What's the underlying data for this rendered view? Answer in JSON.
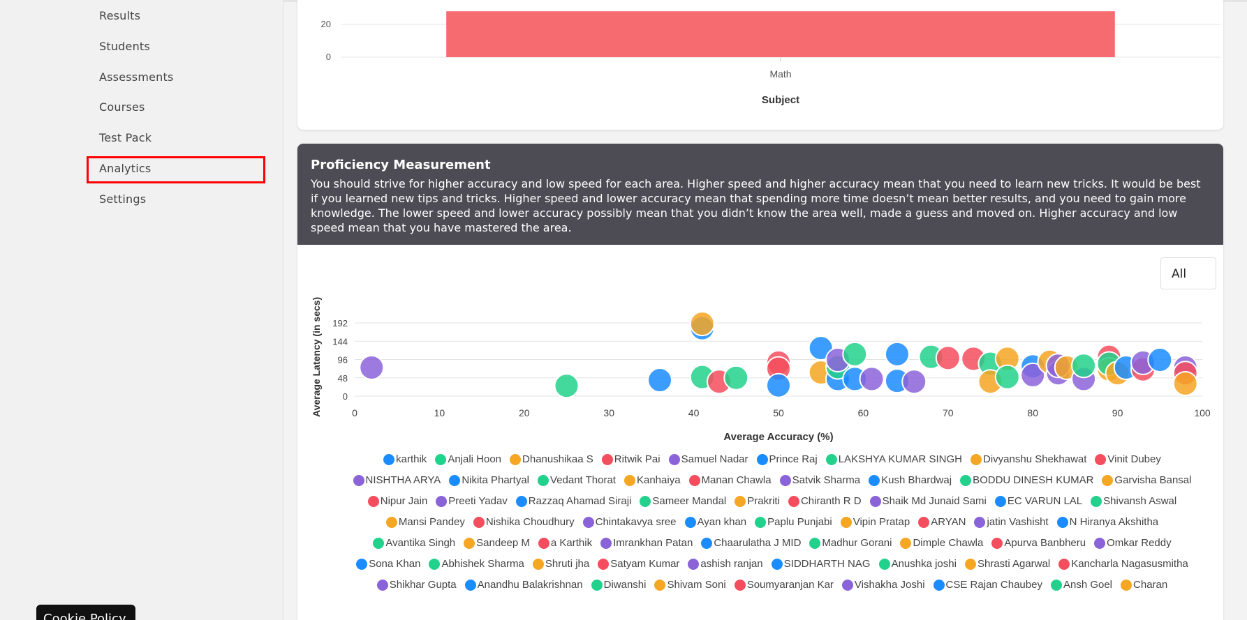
{
  "sidebar": {
    "items": [
      {
        "label": "Results"
      },
      {
        "label": "Students"
      },
      {
        "label": "Assessments"
      },
      {
        "label": "Courses"
      },
      {
        "label": "Test Pack"
      },
      {
        "label": "Analytics"
      },
      {
        "label": "Settings"
      }
    ],
    "active": "Analytics",
    "cookie_button": "Cookie Policy"
  },
  "subject_chart": {
    "chart_data": {
      "type": "bar",
      "categories": [
        "Math"
      ],
      "values": [
        28
      ],
      "xlabel": "Subject",
      "ylim": [
        0,
        28
      ],
      "y_ticks": [
        0,
        20
      ],
      "color": "#f56b6f"
    }
  },
  "proficiency": {
    "title": "Proficiency Measurement",
    "description": "You should strive for higher accuracy and low speed for each area. Higher speed and higher accuracy mean that you need to learn new tricks. It would be best if you learned new tips and tricks. Higher speed and lower accuracy mean that spending more time doesn’t mean better results, and you need to gain more knowledge. The lower speed and lower accuracy possibly mean that you didn’t know the area well, made a guess and moved on. Higher accuracy and low speed mean that you have mastered the area.",
    "filter_value": "All",
    "chart_data": {
      "type": "scatter",
      "xlabel": "Average Accuracy (%)",
      "ylabel": "Average Latency (in secs)",
      "xlim": [
        0,
        100
      ],
      "ylim": [
        0,
        200
      ],
      "x_ticks": [
        0,
        10,
        20,
        30,
        40,
        50,
        60,
        70,
        80,
        90,
        100
      ],
      "y_ticks": [
        0,
        48,
        96,
        144,
        192
      ],
      "points": [
        {
          "x": 2,
          "y": 75,
          "color": "#8b63d9"
        },
        {
          "x": 25,
          "y": 27,
          "color": "#22d18b"
        },
        {
          "x": 36,
          "y": 42,
          "color": "#1a8cff"
        },
        {
          "x": 41,
          "y": 178,
          "color": "#1a8cff"
        },
        {
          "x": 41,
          "y": 190,
          "color": "#f5a623"
        },
        {
          "x": 41,
          "y": 50,
          "color": "#22d18b"
        },
        {
          "x": 43,
          "y": 38,
          "color": "#f44d5e"
        },
        {
          "x": 45,
          "y": 48,
          "color": "#22d18b"
        },
        {
          "x": 50,
          "y": 88,
          "color": "#f44d5e"
        },
        {
          "x": 50,
          "y": 72,
          "color": "#f44d5e"
        },
        {
          "x": 50,
          "y": 28,
          "color": "#1a8cff"
        },
        {
          "x": 55,
          "y": 126,
          "color": "#1a8cff"
        },
        {
          "x": 55,
          "y": 62,
          "color": "#f5a623"
        },
        {
          "x": 57,
          "y": 45,
          "color": "#1a8cff"
        },
        {
          "x": 57,
          "y": 76,
          "color": "#22d18b"
        },
        {
          "x": 57,
          "y": 95,
          "color": "#8b63d9"
        },
        {
          "x": 59,
          "y": 110,
          "color": "#22d18b"
        },
        {
          "x": 59,
          "y": 45,
          "color": "#1a8cff"
        },
        {
          "x": 61,
          "y": 45,
          "color": "#8b63d9"
        },
        {
          "x": 64,
          "y": 110,
          "color": "#1a8cff"
        },
        {
          "x": 64,
          "y": 40,
          "color": "#1a8cff"
        },
        {
          "x": 66,
          "y": 38,
          "color": "#8b63d9"
        },
        {
          "x": 68,
          "y": 103,
          "color": "#22d18b"
        },
        {
          "x": 70,
          "y": 100,
          "color": "#f44d5e"
        },
        {
          "x": 73,
          "y": 98,
          "color": "#f44d5e"
        },
        {
          "x": 75,
          "y": 85,
          "color": "#22d18b"
        },
        {
          "x": 75,
          "y": 38,
          "color": "#f5a623"
        },
        {
          "x": 77,
          "y": 98,
          "color": "#f5a623"
        },
        {
          "x": 77,
          "y": 50,
          "color": "#22d18b"
        },
        {
          "x": 80,
          "y": 78,
          "color": "#1a8cff"
        },
        {
          "x": 80,
          "y": 55,
          "color": "#8b63d9"
        },
        {
          "x": 82,
          "y": 90,
          "color": "#f5a623"
        },
        {
          "x": 83,
          "y": 60,
          "color": "#8b63d9"
        },
        {
          "x": 83,
          "y": 80,
          "color": "#8b63d9"
        },
        {
          "x": 84,
          "y": 75,
          "color": "#f5a623"
        },
        {
          "x": 86,
          "y": 45,
          "color": "#8b63d9"
        },
        {
          "x": 86,
          "y": 80,
          "color": "#22d18b"
        },
        {
          "x": 89,
          "y": 103,
          "color": "#f44d5e"
        },
        {
          "x": 89,
          "y": 70,
          "color": "#f5a623"
        },
        {
          "x": 89,
          "y": 85,
          "color": "#22d18b"
        },
        {
          "x": 90,
          "y": 60,
          "color": "#f5a623"
        },
        {
          "x": 91,
          "y": 75,
          "color": "#1a8cff"
        },
        {
          "x": 93,
          "y": 70,
          "color": "#f44d5e"
        },
        {
          "x": 93,
          "y": 88,
          "color": "#8b63d9"
        },
        {
          "x": 95,
          "y": 95,
          "color": "#1a8cff"
        },
        {
          "x": 98,
          "y": 75,
          "color": "#8b63d9"
        },
        {
          "x": 98,
          "y": 60,
          "color": "#f44d5e"
        },
        {
          "x": 98,
          "y": 33,
          "color": "#f5a623"
        }
      ]
    },
    "legend_rows": [
      [
        [
          "karthik",
          "#1a8cff"
        ],
        [
          "Anjali Hoon",
          "#22d18b"
        ],
        [
          "Dhanushikaa S",
          "#f5a623"
        ],
        [
          "Ritwik Pai",
          "#f44d5e"
        ],
        [
          "Samuel Nadar",
          "#8b63d9"
        ],
        [
          "Prince Raj",
          "#1a8cff"
        ],
        [
          "LAKSHYA KUMAR SINGH",
          "#22d18b"
        ],
        [
          "Divyanshu Shekhawat",
          "#f5a623"
        ],
        [
          "Vinit Dubey",
          "#f44d5e"
        ]
      ],
      [
        [
          "NISHTHA ARYA",
          "#8b63d9"
        ],
        [
          "Nikita Phartyal",
          "#1a8cff"
        ],
        [
          "Vedant Thorat",
          "#22d18b"
        ],
        [
          "Kanhaiya",
          "#f5a623"
        ],
        [
          "Manan Chawla",
          "#f44d5e"
        ],
        [
          "Satvik Sharma",
          "#8b63d9"
        ],
        [
          "Kush Bhardwaj",
          "#1a8cff"
        ],
        [
          "BODDU DINESH KUMAR",
          "#22d18b"
        ],
        [
          "Garvisha Bansal",
          "#f5a623"
        ]
      ],
      [
        [
          "Nipur Jain",
          "#f44d5e"
        ],
        [
          "Preeti Yadav",
          "#8b63d9"
        ],
        [
          "Razzaq Ahamad Siraji",
          "#1a8cff"
        ],
        [
          "Sameer Mandal",
          "#22d18b"
        ],
        [
          "Prakriti",
          "#f5a623"
        ],
        [
          "Chiranth R D",
          "#f44d5e"
        ],
        [
          "Shaik Md Junaid Sami",
          "#8b63d9"
        ],
        [
          "EC VARUN LAL",
          "#1a8cff"
        ],
        [
          "Shivansh Aswal",
          "#22d18b"
        ]
      ],
      [
        [
          "Mansi Pandey",
          "#f5a623"
        ],
        [
          "Nishika Choudhury",
          "#f44d5e"
        ],
        [
          "Chintakavya sree",
          "#8b63d9"
        ],
        [
          "Ayan khan",
          "#1a8cff"
        ],
        [
          "Paplu Punjabi",
          "#22d18b"
        ],
        [
          "Vipin Pratap",
          "#f5a623"
        ],
        [
          "ARYAN",
          "#f44d5e"
        ],
        [
          "jatin Vashisht",
          "#8b63d9"
        ],
        [
          "N Hiranya Akshitha",
          "#1a8cff"
        ]
      ],
      [
        [
          "Avantika Singh",
          "#22d18b"
        ],
        [
          "Sandeep M",
          "#f5a623"
        ],
        [
          "a Karthik",
          "#f44d5e"
        ],
        [
          "Imrankhan Patan",
          "#8b63d9"
        ],
        [
          "Chaarulatha J MID",
          "#1a8cff"
        ],
        [
          "Madhur Gorani",
          "#22d18b"
        ],
        [
          "Dimple Chawla",
          "#f5a623"
        ],
        [
          "Apurva Banbheru",
          "#f44d5e"
        ],
        [
          "Omkar Reddy",
          "#8b63d9"
        ]
      ],
      [
        [
          "Sona Khan",
          "#1a8cff"
        ],
        [
          "Abhishek Sharma",
          "#22d18b"
        ],
        [
          "Shruti jha",
          "#f5a623"
        ],
        [
          "Satyam Kumar",
          "#f44d5e"
        ],
        [
          "ashish ranjan",
          "#8b63d9"
        ],
        [
          "SIDDHARTH NAG",
          "#1a8cff"
        ],
        [
          "Anushka joshi",
          "#22d18b"
        ],
        [
          "Shrasti Agarwal",
          "#f5a623"
        ],
        [
          "Kancharla Nagasusmitha",
          "#f44d5e"
        ]
      ],
      [
        [
          "Shikhar Gupta",
          "#8b63d9"
        ],
        [
          "Anandhu Balakrishnan",
          "#1a8cff"
        ],
        [
          "Diwanshi",
          "#22d18b"
        ],
        [
          "Shivam Soni",
          "#f5a623"
        ],
        [
          "Soumyaranjan Kar",
          "#f44d5e"
        ],
        [
          "Vishakha Joshi",
          "#8b63d9"
        ],
        [
          "CSE Rajan Chaubey",
          "#1a8cff"
        ],
        [
          "Ansh Goel",
          "#22d18b"
        ],
        [
          "Charan",
          "#f5a623"
        ]
      ]
    ]
  }
}
